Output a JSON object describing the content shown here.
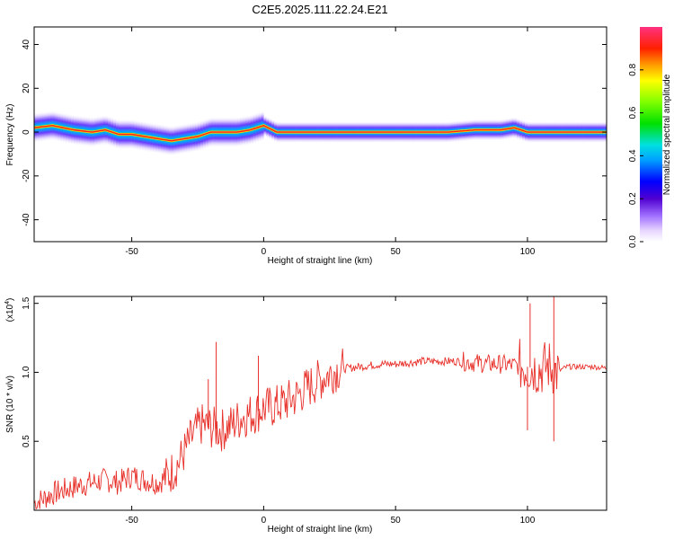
{
  "title": "C2E5.2025.111.22.24.E21",
  "chart_data": [
    {
      "type": "heatmap",
      "xlabel": "Height of straight line (km)",
      "ylabel": "Frequency (Hz)",
      "xlim": [
        -87,
        130
      ],
      "ylim": [
        -50,
        48
      ],
      "xticks": [
        -50,
        0,
        50,
        100
      ],
      "xtick_labels": [
        "-50",
        "0",
        "50",
        "100"
      ],
      "yticks": [
        40,
        20,
        0,
        -20,
        -40
      ],
      "ytick_labels": [
        "40",
        "20",
        "0",
        "-20",
        "-40"
      ],
      "colorbar": {
        "label": "Normalized spectral amplitude",
        "range": [
          0,
          1
        ],
        "ticks": [
          0.0,
          0.2,
          0.4,
          0.6,
          0.8
        ],
        "tick_labels": [
          "0.0",
          "0.2",
          "0.4",
          "0.6",
          "0.8"
        ]
      },
      "ridge": {
        "x": [
          -87,
          -80,
          -72,
          -65,
          -60,
          -55,
          -50,
          -45,
          -40,
          -35,
          -30,
          -25,
          -20,
          -15,
          -10,
          -5,
          0,
          5,
          10,
          20,
          30,
          40,
          50,
          60,
          70,
          80,
          90,
          95,
          100,
          105,
          110,
          120,
          130
        ],
        "y": [
          2,
          3,
          1,
          0,
          1,
          -1,
          -1,
          -2,
          -3,
          -4,
          -3,
          -2,
          0,
          0,
          0,
          1,
          3,
          0,
          0,
          0,
          0,
          0,
          0,
          0,
          0,
          1,
          1,
          2,
          0,
          0,
          0,
          0,
          0
        ]
      }
    },
    {
      "type": "line",
      "xlabel": "Height of straight line (km)",
      "ylabel": "SNR (10 * v/v)",
      "scale_label": "(x10",
      "scale_exp": "4",
      "scale_close": ")",
      "xlim": [
        -87,
        130
      ],
      "ylim": [
        0,
        1.55
      ],
      "xticks": [
        -50,
        0,
        50,
        100
      ],
      "xtick_labels": [
        "-50",
        "0",
        "50",
        "100"
      ],
      "yticks": [
        0.5,
        1.0,
        1.5
      ],
      "ytick_labels": [
        "0.5",
        "1.0",
        "1.5"
      ],
      "series": [
        {
          "color": "#e8302a",
          "x": [
            -87,
            -80,
            -75,
            -70,
            -65,
            -60,
            -55,
            -50,
            -45,
            -40,
            -36,
            -32,
            -28,
            -24,
            -20,
            -16,
            -12,
            -8,
            -4,
            0,
            4,
            8,
            12,
            16,
            20,
            24,
            28,
            32,
            36,
            40,
            45,
            50,
            55,
            60,
            65,
            70,
            75,
            80,
            85,
            90,
            95,
            100,
            105,
            108,
            111,
            115,
            120,
            125,
            130
          ],
          "y": [
            0.05,
            0.12,
            0.15,
            0.18,
            0.2,
            0.22,
            0.2,
            0.25,
            0.22,
            0.2,
            0.25,
            0.35,
            0.5,
            0.62,
            0.6,
            0.58,
            0.62,
            0.68,
            0.7,
            0.74,
            0.75,
            0.78,
            0.82,
            0.88,
            0.93,
            0.98,
            1.02,
            1.03,
            1.04,
            1.05,
            1.06,
            1.06,
            1.07,
            1.08,
            1.08,
            1.08,
            1.08,
            1.07,
            1.06,
            1.06,
            1.05,
            1.04,
            1.02,
            1.05,
            1.0,
            1.04,
            1.04,
            1.04,
            1.03
          ]
        }
      ],
      "annotations": [
        {
          "x": -18,
          "y": 1.22
        },
        {
          "x": -21,
          "y": 0.95
        },
        {
          "x": -2,
          "y": 1.12
        },
        {
          "x": 101,
          "y": 1.5
        },
        {
          "x": 110,
          "y": 1.56
        },
        {
          "x": 110,
          "y": 0.5
        },
        {
          "x": 100,
          "y": 0.58
        }
      ]
    }
  ]
}
